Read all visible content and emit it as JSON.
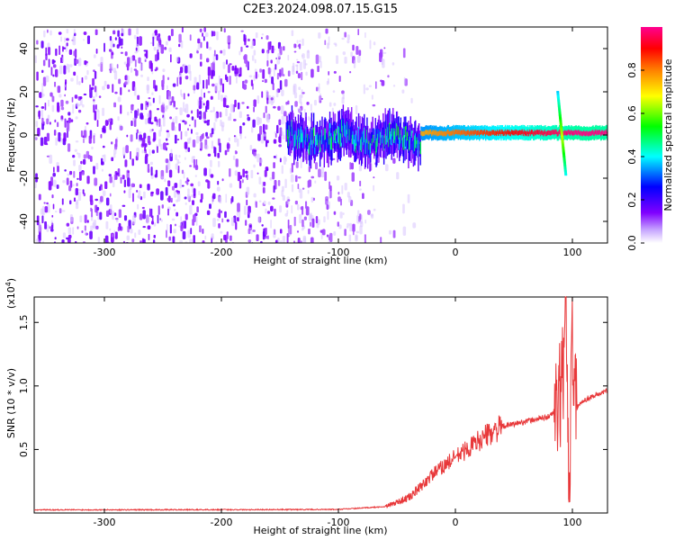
{
  "title": "C2E3.2024.098.07.15.G15",
  "colors": {
    "snr_line": "#e8383a",
    "axis": "#000000",
    "background": "#ffffff"
  },
  "chart_data": [
    {
      "type": "heatmap",
      "name": "spectrogram",
      "xlabel": "Height of straight line (km)",
      "ylabel": "Frequency (Hz)",
      "xlim": [
        -360,
        130
      ],
      "ylim": [
        -50,
        50
      ],
      "x_ticks": [
        -300,
        -200,
        -100,
        0,
        100
      ],
      "y_ticks": [
        -40,
        -20,
        0,
        20,
        40
      ],
      "colorbar": {
        "label": "Normalized spectral amplitude",
        "range": [
          0.0,
          1.0
        ],
        "ticks": [
          0.0,
          0.2,
          0.4,
          0.6,
          0.8
        ],
        "colormap": [
          "#ffffff",
          "#8000ff",
          "#0000ff",
          "#00ffff",
          "#00ff00",
          "#ffff00",
          "#ff8000",
          "#ff0000",
          "#ff0080"
        ]
      },
      "features": {
        "noise_region_x": [
          -360,
          -30
        ],
        "signal_start_x": -145,
        "signal_frequency_hz": 0,
        "spike_x": 90,
        "spike_frequency_range": [
          -18,
          21
        ]
      }
    },
    {
      "type": "line",
      "name": "snr",
      "xlabel": "Height of straight line (km)",
      "ylabel": "SNR (10 * v/v)",
      "y_scale_label": "(x10",
      "y_scale_exponent": "4",
      "y_scale_suffix": ")",
      "xlim": [
        -360,
        130
      ],
      "ylim": [
        0,
        17000
      ],
      "x_ticks": [
        -300,
        -200,
        -100,
        0,
        100
      ],
      "y_ticks": [
        0.5,
        1.0,
        1.5
      ],
      "y_tick_labels": [
        "0.5",
        "1.0",
        "1.5"
      ],
      "series": [
        {
          "points": [
            [
              -360,
              250
            ],
            [
              -300,
              250
            ],
            [
              -200,
              260
            ],
            [
              -100,
              280
            ],
            [
              -60,
              500
            ],
            [
              -40,
              1200
            ],
            [
              -30,
              2000
            ],
            [
              -20,
              3000
            ],
            [
              -10,
              3700
            ],
            [
              0,
              4400
            ],
            [
              10,
              5000
            ],
            [
              20,
              5700
            ],
            [
              30,
              6300
            ],
            [
              40,
              6800
            ],
            [
              60,
              7200
            ],
            [
              80,
              7600
            ],
            [
              88,
              8200
            ],
            [
              92,
              11000
            ],
            [
              95,
              16000
            ],
            [
              97,
              1000
            ],
            [
              100,
              15000
            ],
            [
              102,
              8200
            ],
            [
              110,
              8900
            ],
            [
              120,
              9300
            ],
            [
              130,
              9600
            ]
          ]
        }
      ]
    }
  ]
}
